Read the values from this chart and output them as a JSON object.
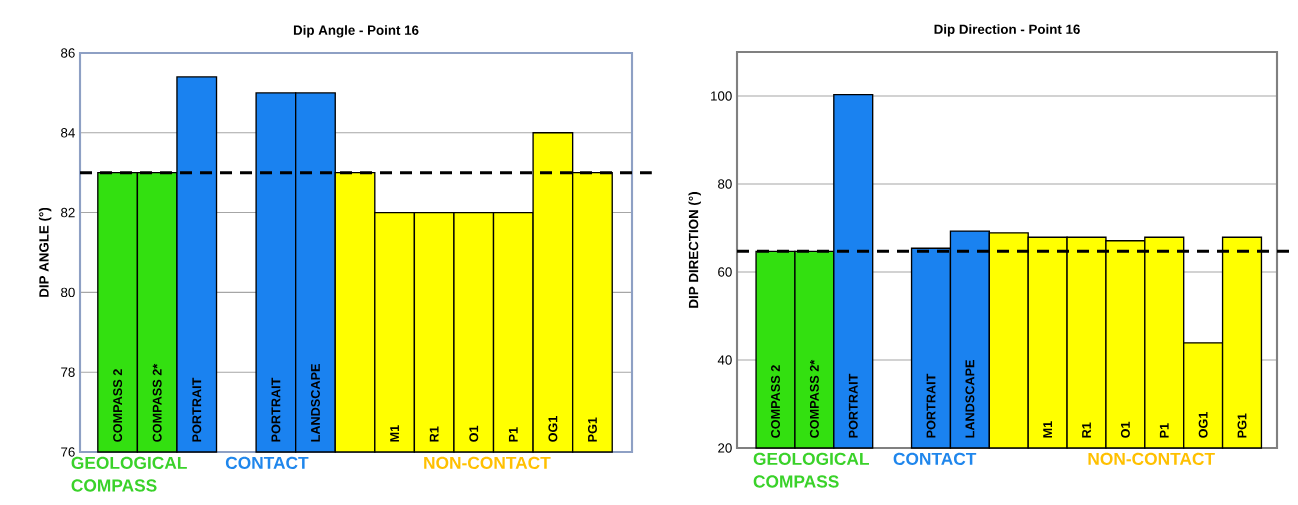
{
  "chart_data": [
    {
      "type": "bar",
      "title": "Dip Angle - Point 16",
      "ylabel": "DIP ANGLE (°)",
      "categories": [
        "COMPASS 2",
        "COMPASS 2*",
        "PORTRAIT",
        null,
        "PORTRAIT",
        "LANDSCAPE",
        null,
        "M1",
        "R1",
        "O1",
        "P1",
        "OG1",
        "PG1"
      ],
      "values": [
        83,
        83,
        85.4,
        null,
        85,
        85,
        83,
        82,
        82,
        82,
        82,
        84,
        83
      ],
      "colors": [
        "#33e010",
        "#33e010",
        "#1a82f0",
        "#1a82f0",
        "#1a82f0",
        "#1a82f0",
        "#ffff00",
        "#ffff00",
        "#ffff00",
        "#ffff00",
        "#ffff00",
        "#ffff00",
        "#ffff00"
      ],
      "ylim": [
        76,
        86
      ],
      "yticks": [
        76,
        78,
        80,
        82,
        84,
        86
      ],
      "grid": "y",
      "ref_lines": [
        {
          "axis": "y",
          "value": 83,
          "color": "#000000",
          "line_style": "dashed"
        }
      ],
      "annotations": [
        "GEOLOGICAL COMPASS",
        "CONTACT",
        "NON-CONTACT"
      ]
    },
    {
      "type": "bar",
      "title": "Dip Direction - Point 16",
      "ylabel": "DIP DIRECTION (°)",
      "categories": [
        "COMPASS 2",
        "COMPASS 2*",
        "PORTRAIT",
        null,
        "PORTRAIT",
        "LANDSCAPE",
        null,
        "M1",
        "R1",
        "O1",
        "P1",
        "OG1",
        "PG1"
      ],
      "values": [
        64.7,
        64.7,
        100.3,
        null,
        65.4,
        69.3,
        68.9,
        67.9,
        67.9,
        67.1,
        67.9,
        43.9,
        67.9
      ],
      "colors": [
        "#33e010",
        "#33e010",
        "#1a82f0",
        "#1a82f0",
        "#1a82f0",
        "#1a82f0",
        "#ffff00",
        "#ffff00",
        "#ffff00",
        "#ffff00",
        "#ffff00",
        "#ffff00",
        "#ffff00"
      ],
      "ylim": [
        20,
        110
      ],
      "yticks": [
        20,
        40,
        60,
        80,
        100
      ],
      "grid": "y",
      "ref_lines": [
        {
          "axis": "y",
          "value": 64.7,
          "color": "#000000",
          "line_style": "dashed"
        }
      ],
      "annotations": [
        "GEOLOGICAL COMPASS",
        "CONTACT",
        "NON-CONTACT"
      ]
    }
  ]
}
